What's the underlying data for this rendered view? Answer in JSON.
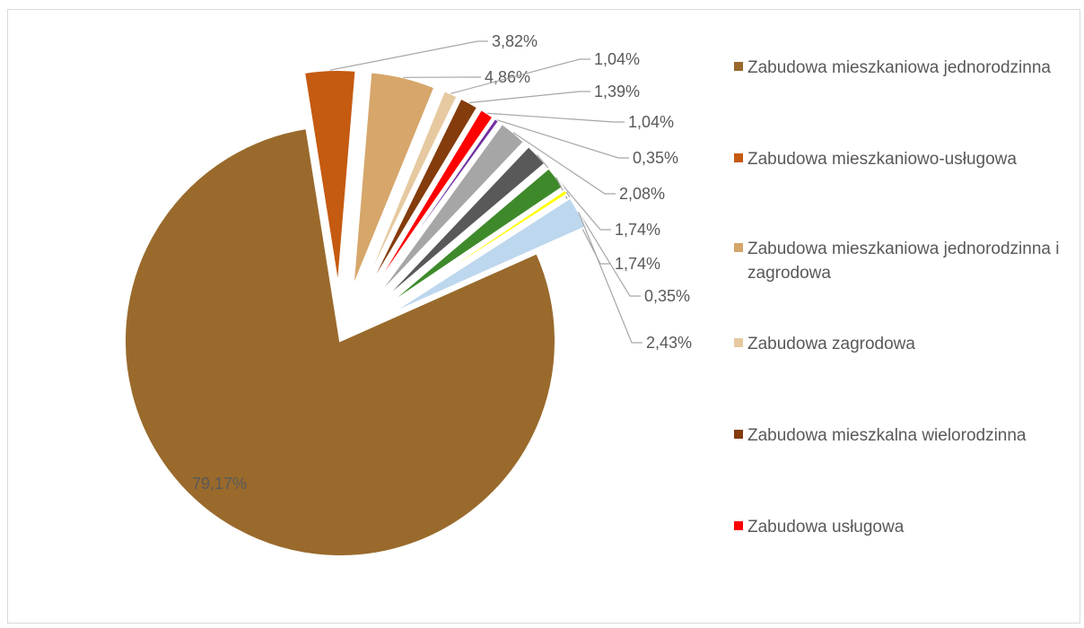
{
  "chart_data": {
    "type": "pie",
    "title": "",
    "slices": [
      {
        "label": "Zabudowa mieszkaniowa jednorodzinna",
        "value": 79.17,
        "display": "79,17%",
        "color": "#996A2C"
      },
      {
        "label": "Zabudowa mieszkaniowo-usługowa",
        "value": 3.82,
        "display": "3,82%",
        "color": "#C55A11"
      },
      {
        "label": "Zabudowa mieszkaniowa jednorodzinna i zagrodowa",
        "value": 4.86,
        "display": "4,86%",
        "color": "#D6A66A"
      },
      {
        "label": "Zabudowa zagrodowa",
        "value": 1.04,
        "display": "1,04%",
        "color": "#E6C9A0"
      },
      {
        "label": "Zabudowa mieszkalna wielorodzinna",
        "value": 1.39,
        "display": "1,39%",
        "color": "#843C0C"
      },
      {
        "label": "Zabudowa usługowa",
        "value": 1.04,
        "display": "1,04%",
        "color": "#FF0000"
      },
      {
        "label": "",
        "value": 0.35,
        "display": "0,35%",
        "color": "#7030A0"
      },
      {
        "label": "",
        "value": 2.08,
        "display": "2,08%",
        "color": "#A6A6A6"
      },
      {
        "label": "",
        "value": 1.74,
        "display": "1,74%",
        "color": "#595959"
      },
      {
        "label": "",
        "value": 1.74,
        "display": "1,74%",
        "color": "#3E8A2A"
      },
      {
        "label": "",
        "value": 0.35,
        "display": "0,35%",
        "color": "#FFFF00"
      },
      {
        "label": "",
        "value": 2.43,
        "display": "2,43%",
        "color": "#BDD7EE"
      }
    ],
    "legend_position": "right"
  },
  "legend": [
    {
      "label": "Zabudowa mieszkaniowa jednorodzinna",
      "color": "#996A2C"
    },
    {
      "label": "Zabudowa mieszkaniowo-usługowa",
      "color": "#C55A11"
    },
    {
      "label": "Zabudowa mieszkaniowa jednorodzinna i zagrodowa",
      "color": "#D6A66A"
    },
    {
      "label": "Zabudowa zagrodowa",
      "color": "#E6C9A0"
    },
    {
      "label": "Zabudowa mieszkalna wielorodzinna",
      "color": "#843C0C"
    },
    {
      "label": "Zabudowa usługowa",
      "color": "#FF0000"
    }
  ]
}
